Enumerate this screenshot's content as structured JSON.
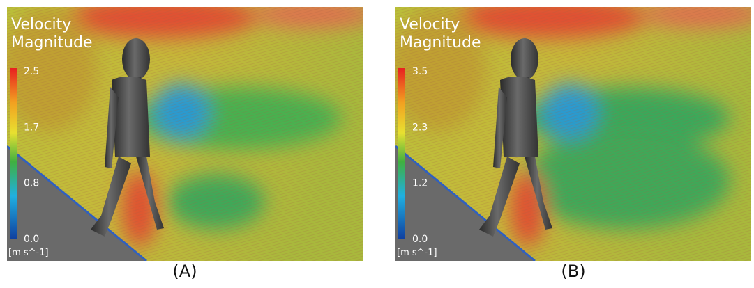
{
  "panels": [
    {
      "title": [
        "Velocity",
        "Magnitude"
      ],
      "colorbar": {
        "ticks": [
          "2.5",
          "1.7",
          "0.8",
          "0.0"
        ],
        "unit": "[m s^-1]"
      },
      "caption": "(A)"
    },
    {
      "title": [
        "Velocity",
        "Magnitude"
      ],
      "colorbar": {
        "ticks": [
          "3.5",
          "2.3",
          "1.2",
          "0.0"
        ],
        "unit": "[m s^-1]"
      },
      "caption": "(B)"
    }
  ]
}
